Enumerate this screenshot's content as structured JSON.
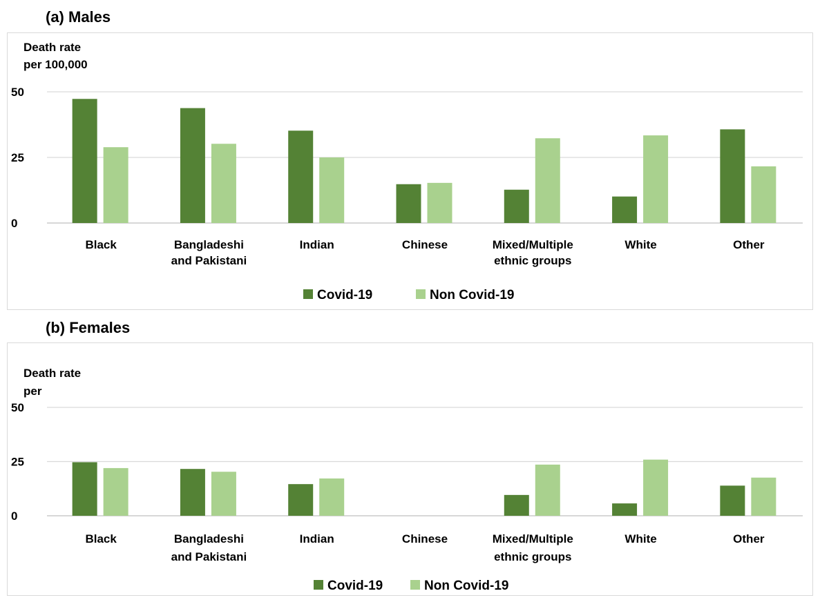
{
  "panels": [
    {
      "title": "(a) Males"
    },
    {
      "title": "(b)  Females"
    }
  ],
  "chart_data": [
    {
      "type": "bar",
      "title": "(a) Males",
      "ylabel_lines": [
        "Death rate",
        "per 100,000"
      ],
      "xlabel": "",
      "ylim": [
        0,
        50
      ],
      "yticks": [
        0,
        25,
        50
      ],
      "grid": true,
      "legend": "bottom",
      "categories": [
        [
          "Black"
        ],
        [
          "Bangladeshi",
          "and Pakistani"
        ],
        [
          "Indian"
        ],
        [
          "Chinese"
        ],
        [
          "Mixed/Multiple",
          "ethnic groups"
        ],
        [
          "White"
        ],
        [
          "Other"
        ]
      ],
      "series": [
        {
          "name": "Covid-19",
          "color": "#548235",
          "values": [
            47.3,
            43.8,
            35.2,
            14.8,
            12.7,
            10.1,
            35.7
          ]
        },
        {
          "name": "Non Covid-19",
          "color": "#a9d18e",
          "values": [
            28.9,
            30.2,
            25.0,
            15.3,
            32.3,
            33.4,
            21.6
          ]
        }
      ]
    },
    {
      "type": "bar",
      "title": "(b)  Females",
      "ylabel_lines": [
        "Death rate",
        "per"
      ],
      "xlabel": "",
      "ylim": [
        0,
        50
      ],
      "yticks": [
        0,
        25,
        50
      ],
      "grid": true,
      "legend": "bottom",
      "categories": [
        [
          "Black"
        ],
        [
          "Bangladeshi",
          "and Pakistani"
        ],
        [
          "Indian"
        ],
        [
          "Chinese"
        ],
        [
          "Mixed/Multiple",
          "ethnic groups"
        ],
        [
          "White"
        ],
        [
          "Other"
        ]
      ],
      "series": [
        {
          "name": "Covid-19",
          "color": "#548235",
          "values": [
            24.7,
            21.6,
            14.6,
            0,
            9.6,
            5.7,
            13.9
          ]
        },
        {
          "name": "Non Covid-19",
          "color": "#a9d18e",
          "values": [
            22.0,
            20.3,
            17.2,
            0,
            23.6,
            25.9,
            17.6
          ]
        }
      ]
    }
  ]
}
